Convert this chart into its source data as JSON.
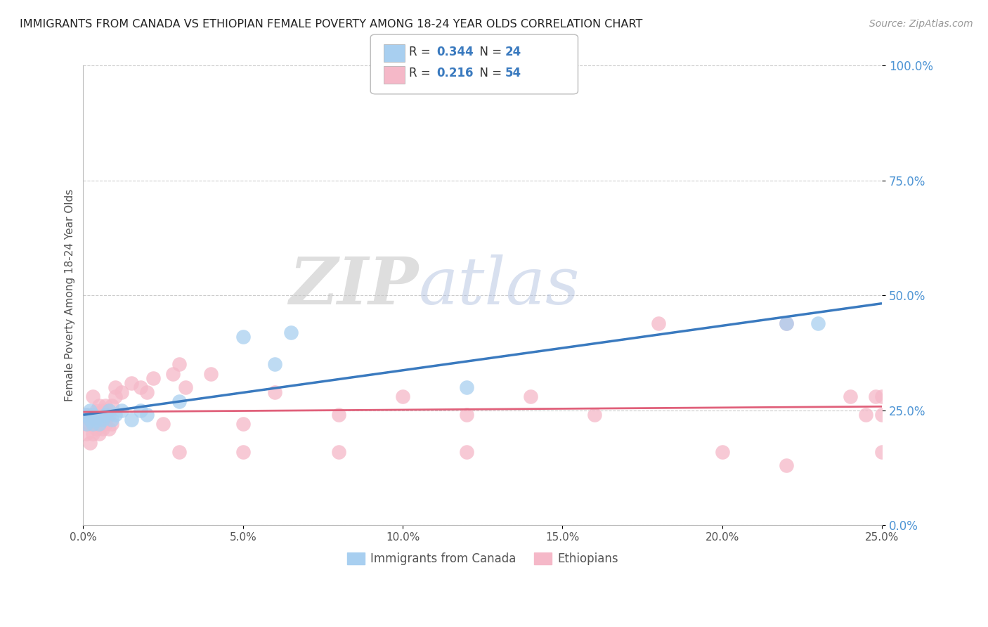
{
  "title": "IMMIGRANTS FROM CANADA VS ETHIOPIAN FEMALE POVERTY AMONG 18-24 YEAR OLDS CORRELATION CHART",
  "source": "Source: ZipAtlas.com",
  "ylabel": "Female Poverty Among 18-24 Year Olds",
  "x_tick_labels": [
    "0.0%",
    "5.0%",
    "10.0%",
    "15.0%",
    "20.0%",
    "25.0%"
  ],
  "y_tick_labels_right": [
    "0.0%",
    "25.0%",
    "50.0%",
    "75.0%",
    "100.0%"
  ],
  "xlim": [
    0.0,
    0.25
  ],
  "ylim": [
    0.0,
    1.0
  ],
  "legend_label1": "Immigrants from Canada",
  "legend_label2": "Ethiopians",
  "R1": "0.344",
  "N1": "24",
  "R2": "0.216",
  "N2": "54",
  "color_canada": "#a8cff0",
  "color_ethiopian": "#f5b8c8",
  "color_canada_line": "#3a7abf",
  "color_ethiopian_line": "#e0607a",
  "color_tick_right": "#4d94d4",
  "background_color": "#ffffff",
  "watermark_zip": "ZIP",
  "watermark_atlas": "atlas",
  "canada_x": [
    0.001,
    0.001,
    0.002,
    0.002,
    0.003,
    0.003,
    0.004,
    0.005,
    0.006,
    0.007,
    0.008,
    0.009,
    0.01,
    0.012,
    0.015,
    0.018,
    0.02,
    0.03,
    0.05,
    0.06,
    0.065,
    0.12,
    0.22,
    0.23
  ],
  "canada_y": [
    0.22,
    0.24,
    0.23,
    0.25,
    0.22,
    0.24,
    0.23,
    0.22,
    0.23,
    0.24,
    0.25,
    0.23,
    0.24,
    0.25,
    0.23,
    0.25,
    0.24,
    0.27,
    0.41,
    0.35,
    0.42,
    0.3,
    0.44,
    0.44
  ],
  "eth_x": [
    0.001,
    0.001,
    0.001,
    0.002,
    0.002,
    0.003,
    0.003,
    0.003,
    0.004,
    0.004,
    0.005,
    0.005,
    0.005,
    0.006,
    0.006,
    0.007,
    0.007,
    0.008,
    0.008,
    0.009,
    0.009,
    0.01,
    0.01,
    0.012,
    0.015,
    0.018,
    0.02,
    0.022,
    0.025,
    0.028,
    0.03,
    0.032,
    0.04,
    0.05,
    0.06,
    0.08,
    0.1,
    0.12,
    0.14,
    0.16,
    0.18,
    0.2,
    0.22,
    0.22,
    0.24,
    0.245,
    0.248,
    0.25,
    0.25,
    0.25,
    0.03,
    0.05,
    0.08,
    0.12
  ],
  "eth_y": [
    0.2,
    0.22,
    0.24,
    0.18,
    0.22,
    0.2,
    0.24,
    0.28,
    0.21,
    0.25,
    0.2,
    0.22,
    0.26,
    0.21,
    0.25,
    0.22,
    0.26,
    0.21,
    0.24,
    0.22,
    0.26,
    0.28,
    0.3,
    0.29,
    0.31,
    0.3,
    0.29,
    0.32,
    0.22,
    0.33,
    0.35,
    0.3,
    0.33,
    0.22,
    0.29,
    0.24,
    0.28,
    0.24,
    0.28,
    0.24,
    0.44,
    0.16,
    0.44,
    0.13,
    0.28,
    0.24,
    0.28,
    0.24,
    0.28,
    0.16,
    0.16,
    0.16,
    0.16,
    0.16
  ]
}
